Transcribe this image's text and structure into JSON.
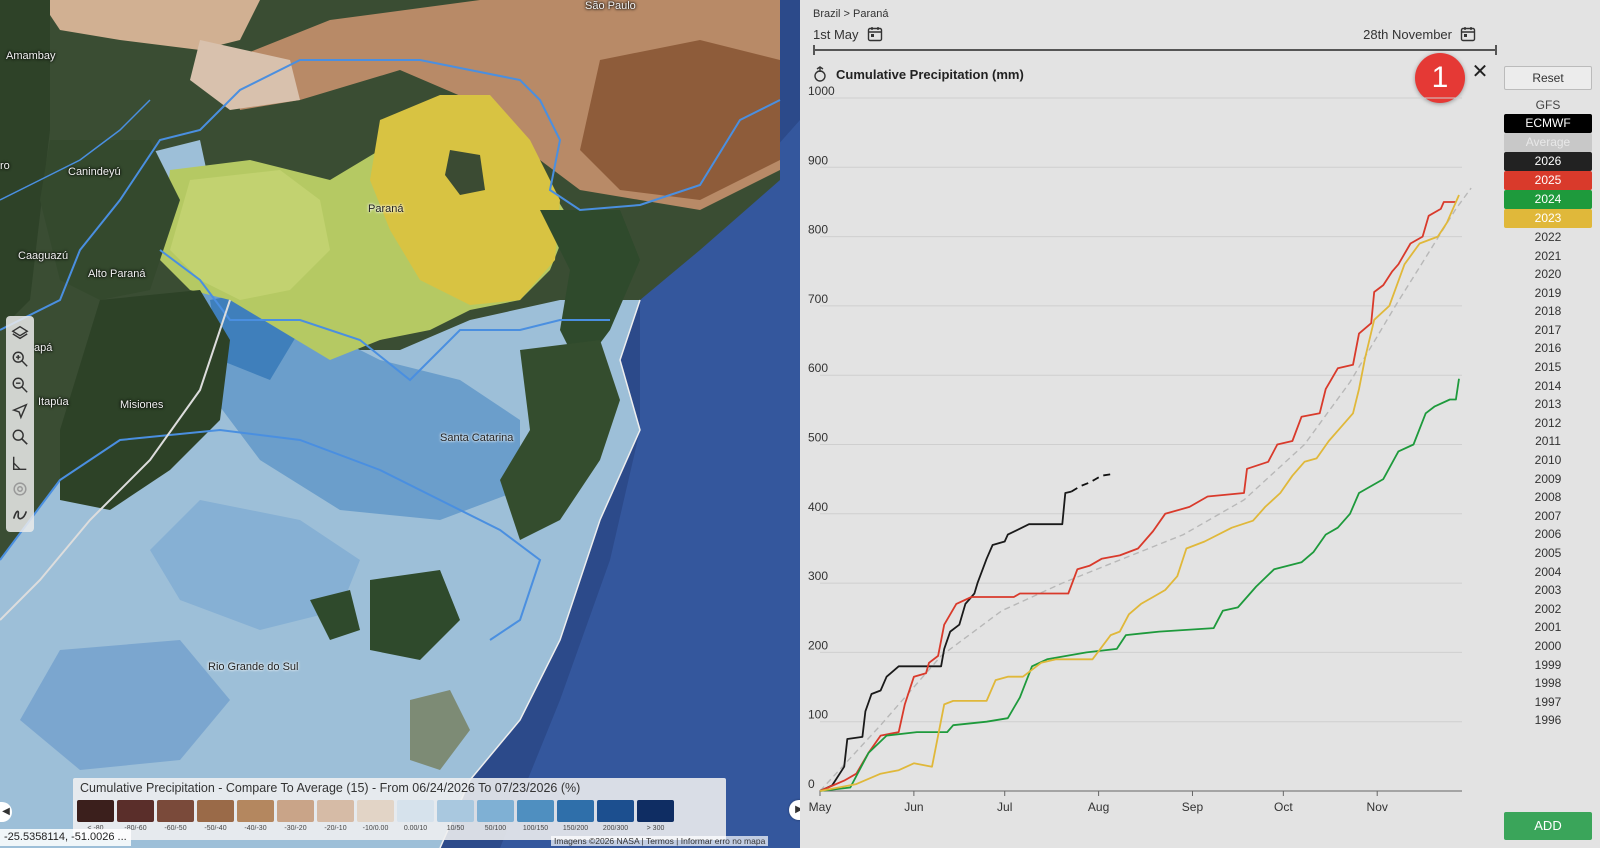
{
  "map": {
    "places": [
      {
        "id": "sao-paulo",
        "label": "São Paulo"
      },
      {
        "id": "amambay",
        "label": "Amambay"
      },
      {
        "id": "canindeyu",
        "label": "Canindeyú"
      },
      {
        "id": "caaguazu",
        "label": "Caaguazú"
      },
      {
        "id": "alto-parana",
        "label": "Alto Paraná"
      },
      {
        "id": "itapua",
        "label": "Itapúa"
      },
      {
        "id": "misiones",
        "label": "Misiones"
      },
      {
        "id": "parana",
        "label": "Paraná"
      },
      {
        "id": "santa-catarina",
        "label": "Santa Catarina"
      },
      {
        "id": "rio-grande-do-sul",
        "label": "Rio Grande do Sul"
      },
      {
        "id": "capa",
        "label": "apá"
      },
      {
        "id": "ro",
        "label": "ro"
      }
    ],
    "tools": [
      "layers-icon",
      "zoom-in-icon",
      "zoom-out-icon",
      "locate-arrow-icon",
      "search-icon",
      "measure-icon",
      "settings-icon",
      "draw-icon"
    ],
    "legend": {
      "title": "Cumulative Precipitation - Compare To Average (15) - From 06/24/2026 To 07/23/2026 (%)",
      "bins": [
        {
          "label": "< -80",
          "color": "#3b1f1c"
        },
        {
          "label": "-80/-60",
          "color": "#5a2e2a"
        },
        {
          "label": "-60/-50",
          "color": "#7a4a3a"
        },
        {
          "label": "-50/-40",
          "color": "#9a6a48"
        },
        {
          "label": "-40/-30",
          "color": "#b4875f"
        },
        {
          "label": "-30/-20",
          "color": "#c9a488"
        },
        {
          "label": "-20/-10",
          "color": "#d6bba6"
        },
        {
          "label": "-10/0.00",
          "color": "#e2d4c6"
        },
        {
          "label": "0.00/10",
          "color": "#d6e2ec"
        },
        {
          "label": "10/50",
          "color": "#a9c8df"
        },
        {
          "label": "50/100",
          "color": "#7fb0d4"
        },
        {
          "label": "100/150",
          "color": "#4f8fc0"
        },
        {
          "label": "150/200",
          "color": "#2f6faa"
        },
        {
          "label": "200/300",
          "color": "#1c4f8f"
        },
        {
          "label": "> 300",
          "color": "#0f2d63"
        }
      ]
    },
    "coordinates": "-25.5358114, -51.0026 ...",
    "attribution": "Imagens ©2026 NASA  |  Termos  |  Informar erro no mapa"
  },
  "panel": {
    "breadcrumb": "Brazil > Paraná",
    "date_start": "1st May",
    "date_end": "28th November",
    "chart_title": "Cumulative Precipitation (mm)",
    "badge": "1",
    "close_label": "✕",
    "reset_label": "Reset",
    "add_label": "ADD",
    "model_gfs": "GFS",
    "models": [
      {
        "label": "ECMWF",
        "bg": "#000000",
        "fg": "#ffffff"
      },
      {
        "label": "Average",
        "bg": "#c8c8c8",
        "fg": "#e8e8e8"
      },
      {
        "label": "2026",
        "bg": "#222222",
        "fg": "#ffffff"
      },
      {
        "label": "2025",
        "bg": "#d93a2b",
        "fg": "#ffffff"
      },
      {
        "label": "2024",
        "bg": "#1e9a3c",
        "fg": "#ffffff"
      },
      {
        "label": "2023",
        "bg": "#e0b83a",
        "fg": "#ffffff"
      },
      {
        "label": "2022"
      },
      {
        "label": "2021"
      },
      {
        "label": "2020"
      },
      {
        "label": "2019"
      },
      {
        "label": "2018"
      },
      {
        "label": "2017"
      },
      {
        "label": "2016"
      },
      {
        "label": "2015"
      },
      {
        "label": "2014"
      },
      {
        "label": "2013"
      },
      {
        "label": "2012"
      },
      {
        "label": "2011"
      },
      {
        "label": "2010"
      },
      {
        "label": "2009"
      },
      {
        "label": "2008"
      },
      {
        "label": "2007"
      },
      {
        "label": "2006"
      },
      {
        "label": "2005"
      },
      {
        "label": "2004"
      },
      {
        "label": "2003"
      },
      {
        "label": "2002"
      },
      {
        "label": "2001"
      },
      {
        "label": "2000"
      },
      {
        "label": "1999"
      },
      {
        "label": "1998"
      },
      {
        "label": "1997"
      },
      {
        "label": "1996"
      }
    ]
  },
  "chart_data": {
    "type": "line",
    "title": "Cumulative Precipitation (mm)",
    "ylim": [
      0,
      1000
    ],
    "yticks": [
      0,
      100,
      200,
      300,
      400,
      500,
      600,
      700,
      800,
      900,
      1000
    ],
    "xlim_day": [
      0,
      212
    ],
    "xticks": [
      {
        "label": "May",
        "day": 0
      },
      {
        "label": "Jun",
        "day": 31
      },
      {
        "label": "Jul",
        "day": 61
      },
      {
        "label": "Aug",
        "day": 92
      },
      {
        "label": "Sep",
        "day": 123
      },
      {
        "label": "Oct",
        "day": 153
      },
      {
        "label": "Nov",
        "day": 184
      }
    ],
    "grid": true,
    "series": [
      {
        "name": "Average",
        "color": "#b8b8b8",
        "dashed": true,
        "points": [
          [
            0,
            0
          ],
          [
            20,
            95
          ],
          [
            40,
            195
          ],
          [
            60,
            260
          ],
          [
            80,
            300
          ],
          [
            100,
            335
          ],
          [
            120,
            370
          ],
          [
            140,
            420
          ],
          [
            160,
            500
          ],
          [
            175,
            590
          ],
          [
            190,
            700
          ],
          [
            200,
            770
          ],
          [
            210,
            840
          ],
          [
            215,
            870
          ]
        ]
      },
      {
        "name": "2026",
        "color": "#1a1a1a",
        "points": [
          [
            0,
            0
          ],
          [
            4,
            8
          ],
          [
            8,
            35
          ],
          [
            9,
            75
          ],
          [
            14,
            78
          ],
          [
            15,
            115
          ],
          [
            17,
            140
          ],
          [
            20,
            145
          ],
          [
            22,
            165
          ],
          [
            26,
            180
          ],
          [
            40,
            180
          ],
          [
            41,
            205
          ],
          [
            43,
            230
          ],
          [
            46,
            240
          ],
          [
            48,
            270
          ],
          [
            51,
            285
          ],
          [
            52,
            300
          ],
          [
            55,
            335
          ],
          [
            57,
            355
          ],
          [
            61,
            360
          ],
          [
            62,
            370
          ],
          [
            69,
            385
          ],
          [
            80,
            385
          ],
          [
            81,
            430
          ],
          [
            83,
            432
          ]
        ]
      },
      {
        "name": "ECMWF",
        "color": "#111111",
        "dashed": true,
        "points": [
          [
            83,
            432
          ],
          [
            86,
            440
          ],
          [
            89,
            445
          ],
          [
            91,
            450
          ],
          [
            93,
            455
          ],
          [
            96,
            457
          ]
        ]
      },
      {
        "name": "2025",
        "color": "#d93a2b",
        "points": [
          [
            0,
            0
          ],
          [
            8,
            15
          ],
          [
            12,
            25
          ],
          [
            16,
            55
          ],
          [
            20,
            80
          ],
          [
            26,
            85
          ],
          [
            28,
            125
          ],
          [
            31,
            165
          ],
          [
            35,
            170
          ],
          [
            36,
            185
          ],
          [
            39,
            195
          ],
          [
            41,
            240
          ],
          [
            45,
            270
          ],
          [
            50,
            280
          ],
          [
            64,
            280
          ],
          [
            66,
            285
          ],
          [
            82,
            285
          ],
          [
            85,
            320
          ],
          [
            89,
            325
          ],
          [
            93,
            335
          ],
          [
            99,
            340
          ],
          [
            105,
            350
          ],
          [
            110,
            375
          ],
          [
            114,
            400
          ],
          [
            122,
            410
          ],
          [
            128,
            425
          ],
          [
            140,
            430
          ],
          [
            141,
            465
          ],
          [
            148,
            475
          ],
          [
            151,
            500
          ],
          [
            156,
            505
          ],
          [
            159,
            540
          ],
          [
            165,
            545
          ],
          [
            167,
            580
          ],
          [
            171,
            610
          ],
          [
            176,
            615
          ],
          [
            178,
            660
          ],
          [
            182,
            675
          ],
          [
            183,
            720
          ],
          [
            186,
            730
          ],
          [
            189,
            750
          ],
          [
            191,
            760
          ],
          [
            195,
            790
          ],
          [
            199,
            800
          ],
          [
            201,
            830
          ],
          [
            205,
            840
          ],
          [
            206,
            850
          ],
          [
            210,
            850
          ]
        ]
      },
      {
        "name": "2024",
        "color": "#1e9a3c",
        "points": [
          [
            0,
            0
          ],
          [
            10,
            5
          ],
          [
            16,
            55
          ],
          [
            22,
            80
          ],
          [
            32,
            85
          ],
          [
            42,
            85
          ],
          [
            44,
            95
          ],
          [
            55,
            100
          ],
          [
            62,
            105
          ],
          [
            66,
            135
          ],
          [
            70,
            180
          ],
          [
            75,
            190
          ],
          [
            88,
            200
          ],
          [
            98,
            205
          ],
          [
            101,
            225
          ],
          [
            112,
            230
          ],
          [
            130,
            235
          ],
          [
            133,
            260
          ],
          [
            138,
            265
          ],
          [
            144,
            295
          ],
          [
            150,
            320
          ],
          [
            159,
            330
          ],
          [
            163,
            345
          ],
          [
            167,
            370
          ],
          [
            171,
            380
          ],
          [
            175,
            400
          ],
          [
            178,
            430
          ],
          [
            186,
            450
          ],
          [
            191,
            490
          ],
          [
            196,
            500
          ],
          [
            200,
            545
          ],
          [
            203,
            555
          ],
          [
            208,
            565
          ],
          [
            210,
            565
          ],
          [
            211,
            595
          ]
        ]
      },
      {
        "name": "2023",
        "color": "#e0b83a",
        "points": [
          [
            0,
            0
          ],
          [
            12,
            10
          ],
          [
            20,
            25
          ],
          [
            26,
            30
          ],
          [
            31,
            40
          ],
          [
            37,
            35
          ],
          [
            39,
            80
          ],
          [
            41,
            125
          ],
          [
            44,
            130
          ],
          [
            55,
            130
          ],
          [
            58,
            160
          ],
          [
            62,
            165
          ],
          [
            67,
            165
          ],
          [
            73,
            185
          ],
          [
            78,
            190
          ],
          [
            90,
            190
          ],
          [
            96,
            225
          ],
          [
            99,
            230
          ],
          [
            102,
            255
          ],
          [
            106,
            270
          ],
          [
            110,
            280
          ],
          [
            114,
            290
          ],
          [
            118,
            310
          ],
          [
            121,
            350
          ],
          [
            127,
            360
          ],
          [
            136,
            380
          ],
          [
            143,
            390
          ],
          [
            147,
            410
          ],
          [
            152,
            430
          ],
          [
            156,
            455
          ],
          [
            160,
            475
          ],
          [
            164,
            480
          ],
          [
            168,
            505
          ],
          [
            172,
            525
          ],
          [
            176,
            545
          ],
          [
            178,
            580
          ],
          [
            180,
            625
          ],
          [
            183,
            680
          ],
          [
            188,
            700
          ],
          [
            193,
            760
          ],
          [
            198,
            790
          ],
          [
            204,
            800
          ],
          [
            207,
            820
          ],
          [
            211,
            860
          ]
        ]
      }
    ]
  }
}
